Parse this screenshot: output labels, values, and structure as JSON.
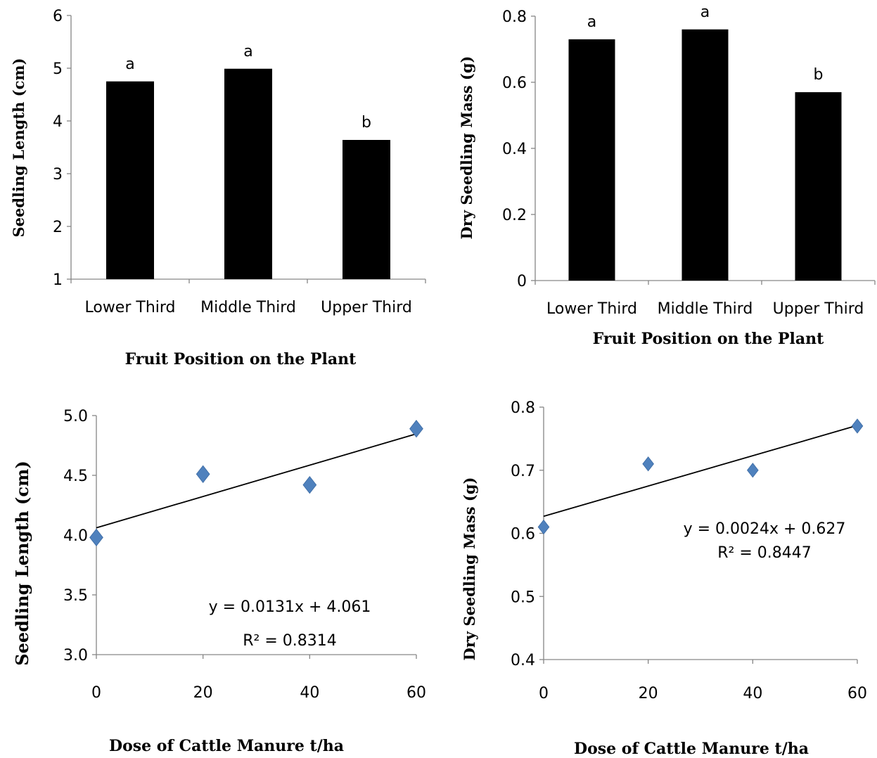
{
  "chart_data": [
    {
      "type": "bar",
      "categories": [
        "Lower Third",
        "Middle  Third",
        "Upper Third"
      ],
      "values": [
        4.75,
        4.99,
        3.64
      ],
      "letters": [
        "a",
        "a",
        "b"
      ],
      "ylabel": "Seedling Length  (cm)",
      "xlabel": "Fruit Position on the Plant",
      "ylim": [
        1,
        6
      ],
      "yticks": [
        "1",
        "2",
        "3",
        "4",
        "5",
        "6"
      ],
      "bar_color": "#000000",
      "grid": false
    },
    {
      "type": "bar",
      "categories": [
        "Lower Third",
        "Middle  Third",
        "Upper Third"
      ],
      "values": [
        0.73,
        0.76,
        0.57
      ],
      "letters": [
        "a",
        "a",
        "b"
      ],
      "ylabel": "Dry Seedling Mass  (g)",
      "xlabel": "Fruit Position on the Plant",
      "ylim": [
        0,
        0.8
      ],
      "yticks": [
        "0",
        "0.2",
        "0.4",
        "0.6",
        "0.8"
      ],
      "bar_color": "#000000",
      "grid": false
    },
    {
      "type": "scatter",
      "x": [
        0,
        20,
        40,
        60
      ],
      "y": [
        3.98,
        4.51,
        4.42,
        4.89
      ],
      "trendline": {
        "slope": 0.0131,
        "intercept": 4.061
      },
      "equation": "y = 0.0131x + 4.061",
      "r2": "R² = 0.8314",
      "ylabel": "Seedling Length  (cm)",
      "xlabel": "Dose of Cattle Manure  t/ha",
      "xlim": [
        0,
        60
      ],
      "ylim": [
        3.0,
        5.0
      ],
      "xticks": [
        "0",
        "20",
        "40",
        "60"
      ],
      "yticks": [
        "3.0",
        "3.5",
        "4.0",
        "4.5",
        "5.0"
      ],
      "marker_color": "#4f81bd",
      "grid": false
    },
    {
      "type": "scatter",
      "x": [
        0,
        20,
        40,
        60
      ],
      "y": [
        0.61,
        0.71,
        0.7,
        0.77
      ],
      "trendline": {
        "slope": 0.0024,
        "intercept": 0.627
      },
      "equation": "y = 0.0024x + 0.627",
      "r2": "R² = 0.8447",
      "ylabel": "Dry Seedling Mass  (g)",
      "xlabel": "Dose of Cattle Manure  t/ha",
      "xlim": [
        0,
        60
      ],
      "ylim": [
        0.4,
        0.8
      ],
      "xticks": [
        "0",
        "20",
        "40",
        "60"
      ],
      "yticks": [
        "0.4",
        "0.5",
        "0.6",
        "0.7",
        "0.8"
      ],
      "marker_color": "#4f81bd",
      "grid": false
    }
  ]
}
